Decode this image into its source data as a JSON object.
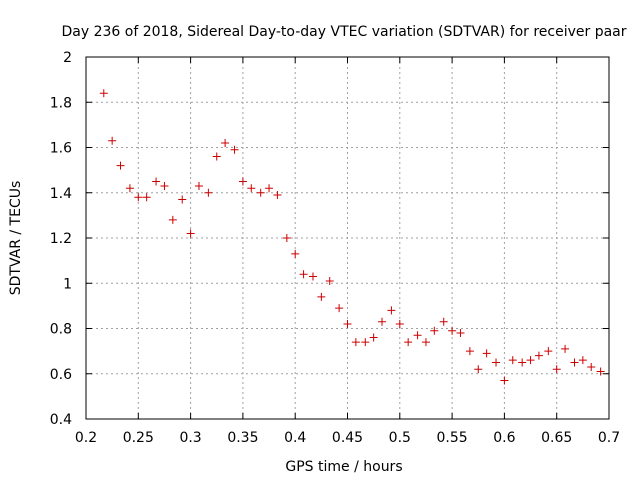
{
  "chart_data": {
    "type": "scatter",
    "title": "Day 236 of 2018, Sidereal Day-to-day VTEC variation (SDTVAR) for receiver paar",
    "xlabel": "GPS time / hours",
    "ylabel": "SDTVAR / TECUs",
    "xlim": [
      0.2,
      0.7
    ],
    "ylim": [
      0.4,
      2.0
    ],
    "xticks": [
      0.2,
      0.25,
      0.3,
      0.35,
      0.4,
      0.45,
      0.5,
      0.55,
      0.6,
      0.65,
      0.7
    ],
    "yticks": [
      0.4,
      0.6,
      0.8,
      1.0,
      1.2,
      1.4,
      1.6,
      1.8,
      2.0
    ],
    "xtick_labels": [
      "0.2",
      "0.25",
      "0.3",
      "0.35",
      "0.4",
      "0.45",
      "0.5",
      "0.55",
      "0.6",
      "0.65",
      "0.7"
    ],
    "ytick_labels": [
      "0.4",
      "0.6",
      "0.8",
      "1",
      "1.2",
      "1.4",
      "1.6",
      "1.8",
      "2"
    ],
    "grid": true,
    "marker": "+",
    "series": [
      {
        "name": "paar",
        "color": "#cc0000",
        "x": [
          0.217,
          0.225,
          0.233,
          0.242,
          0.25,
          0.258,
          0.267,
          0.275,
          0.283,
          0.292,
          0.3,
          0.308,
          0.317,
          0.325,
          0.333,
          0.342,
          0.35,
          0.358,
          0.367,
          0.375,
          0.383,
          0.392,
          0.4,
          0.408,
          0.417,
          0.425,
          0.433,
          0.442,
          0.45,
          0.458,
          0.467,
          0.475,
          0.483,
          0.492,
          0.5,
          0.508,
          0.517,
          0.525,
          0.533,
          0.542,
          0.55,
          0.558,
          0.567,
          0.575,
          0.583,
          0.592,
          0.6,
          0.608,
          0.617,
          0.625,
          0.633,
          0.642,
          0.65,
          0.658,
          0.667,
          0.675,
          0.683,
          0.692
        ],
        "y": [
          1.84,
          1.63,
          1.52,
          1.42,
          1.38,
          1.38,
          1.45,
          1.43,
          1.28,
          1.37,
          1.22,
          1.43,
          1.4,
          1.56,
          1.62,
          1.59,
          1.45,
          1.42,
          1.4,
          1.42,
          1.39,
          1.2,
          1.13,
          1.04,
          1.03,
          0.94,
          1.01,
          0.89,
          0.82,
          0.74,
          0.74,
          0.76,
          0.83,
          0.88,
          0.82,
          0.74,
          0.77,
          0.74,
          0.79,
          0.83,
          0.79,
          0.78,
          0.7,
          0.62,
          0.69,
          0.65,
          0.57,
          0.66,
          0.65,
          0.66,
          0.68,
          0.7,
          0.62,
          0.71,
          0.65,
          0.66,
          0.63,
          0.61
        ]
      }
    ]
  }
}
